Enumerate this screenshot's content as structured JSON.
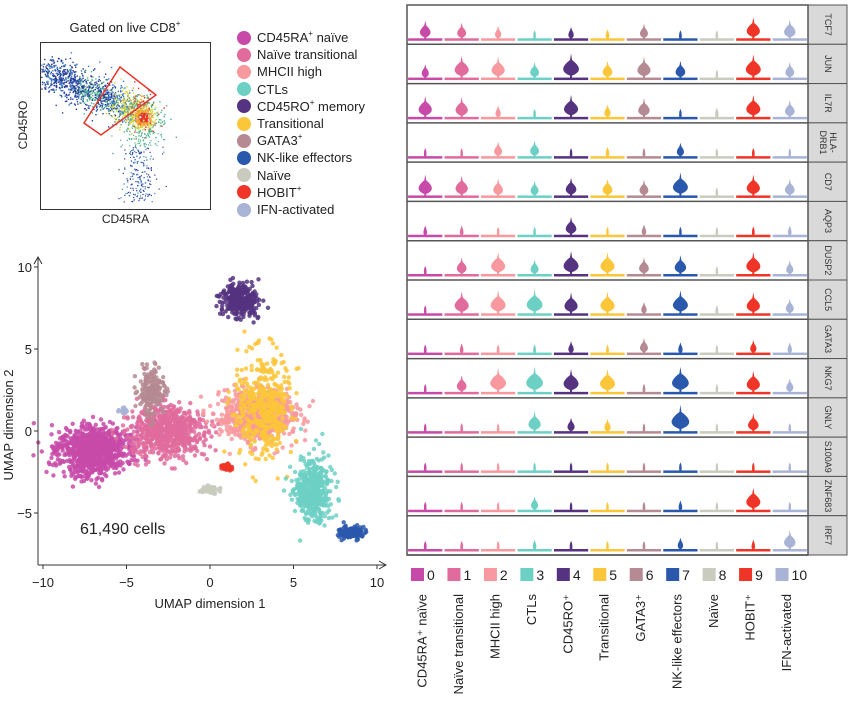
{
  "chart_data": [
    {
      "type": "scatter",
      "name": "flow-cytometry-gate",
      "title": "Gated on live CD8",
      "title_superscript": "+",
      "xlabel": "CD45RA",
      "ylabel": "CD45RO",
      "gate_shape": "rotated-rectangle",
      "gate_color": "#e8332a",
      "density_colors": [
        "#2a3d9a",
        "#3a7fc4",
        "#4fb38a",
        "#c9d93a",
        "#f5a623",
        "#e8332a"
      ]
    },
    {
      "type": "scatter",
      "name": "umap",
      "xlabel": "UMAP dimension 1",
      "ylabel": "UMAP dimension 2",
      "xlim": [
        -10,
        10
      ],
      "ylim": [
        -7,
        10
      ],
      "xticks": [
        -10,
        -5,
        0,
        5,
        10
      ],
      "yticks": [
        -5,
        0,
        5,
        10
      ],
      "xtick_labels": [
        "−10",
        "−5",
        "0",
        "5",
        "10"
      ],
      "ytick_labels": [
        "−5",
        "0",
        "5",
        "10"
      ],
      "annotation": "61,490 cells",
      "clusters": [
        {
          "id": 0,
          "center": [
            -7,
            -1.2
          ],
          "spread": [
            1.8,
            1.2
          ],
          "n": 900
        },
        {
          "id": 1,
          "center": [
            -2.5,
            0
          ],
          "spread": [
            1.8,
            1.3
          ],
          "n": 700
        },
        {
          "id": 2,
          "center": [
            2.8,
            1.0
          ],
          "spread": [
            2.0,
            1.3
          ],
          "n": 650
        },
        {
          "id": 3,
          "center": [
            6.2,
            -3.5
          ],
          "spread": [
            0.9,
            1.6
          ],
          "n": 450
        },
        {
          "id": 4,
          "center": [
            1.8,
            8.0
          ],
          "spread": [
            0.9,
            0.8
          ],
          "n": 320
        },
        {
          "id": 5,
          "center": [
            3.2,
            1.5
          ],
          "spread": [
            1.4,
            2.5
          ],
          "n": 420
        },
        {
          "id": 6,
          "center": [
            -3.5,
            2.5
          ],
          "spread": [
            0.6,
            1.1
          ],
          "n": 200
        },
        {
          "id": 7,
          "center": [
            8.5,
            -6.2
          ],
          "spread": [
            0.6,
            0.3
          ],
          "n": 140
        },
        {
          "id": 8,
          "center": [
            0.0,
            -3.6
          ],
          "spread": [
            0.4,
            0.2
          ],
          "n": 60
        },
        {
          "id": 9,
          "center": [
            1.0,
            -2.2
          ],
          "spread": [
            0.25,
            0.15
          ],
          "n": 60
        },
        {
          "id": 10,
          "center": [
            -5.2,
            1.2
          ],
          "spread": [
            0.2,
            0.15
          ],
          "n": 20
        }
      ]
    },
    {
      "type": "violin",
      "name": "gene-expression-violins",
      "genes": [
        "TCF7",
        "JUN",
        "IL7R",
        "HLA-DRB1",
        "CD7",
        "AQP3",
        "DUSP2",
        "CCL5",
        "GATA3",
        "NKG7",
        "GNLY",
        "S100A9",
        "ZNF683",
        "IRF7"
      ],
      "clusters": [
        "0",
        "1",
        "2",
        "3",
        "4",
        "5",
        "6",
        "7",
        "8",
        "9",
        "10"
      ],
      "expression_level_0_to_1": [
        [
          0.55,
          0.45,
          0.3,
          0.05,
          0.25,
          0.15,
          0.4,
          0.1,
          0.02,
          0.7,
          0.6
        ],
        [
          0.35,
          0.75,
          0.7,
          0.45,
          0.85,
          0.5,
          0.7,
          0.5,
          0.05,
          0.8,
          0.45
        ],
        [
          0.7,
          0.65,
          0.25,
          0.05,
          0.75,
          0.3,
          0.6,
          0.05,
          0.15,
          0.75,
          0.5
        ],
        [
          0.02,
          0.02,
          0.4,
          0.45,
          0.02,
          0.15,
          0.1,
          0.35,
          0.02,
          0.1,
          0.05
        ],
        [
          0.7,
          0.65,
          0.5,
          0.4,
          0.55,
          0.5,
          0.45,
          0.8,
          0.02,
          0.7,
          0.5
        ],
        [
          0.15,
          0.15,
          0.02,
          0.02,
          0.55,
          0.02,
          0.2,
          0.02,
          0.02,
          0.1,
          0.15
        ],
        [
          0.1,
          0.5,
          0.75,
          0.4,
          0.8,
          0.75,
          0.5,
          0.6,
          0.05,
          0.75,
          0.35
        ],
        [
          0.02,
          0.75,
          0.8,
          0.85,
          0.7,
          0.75,
          0.25,
          0.8,
          0.1,
          0.7,
          0.4
        ],
        [
          0.1,
          0.15,
          0.1,
          0.1,
          0.25,
          0.1,
          0.4,
          0.2,
          0.02,
          0.3,
          0.2
        ],
        [
          0.02,
          0.5,
          0.85,
          0.9,
          0.8,
          0.8,
          0.1,
          0.9,
          0.05,
          0.7,
          0.35
        ],
        [
          0.02,
          0.05,
          0.05,
          0.65,
          0.35,
          0.3,
          0.02,
          0.95,
          0.02,
          0.55,
          0.02
        ],
        [
          0.02,
          0.02,
          0.02,
          0.02,
          0.02,
          0.02,
          0.02,
          0.02,
          0.02,
          0.02,
          0.02
        ],
        [
          0.02,
          0.05,
          0.02,
          0.35,
          0.02,
          0.02,
          0.1,
          0.15,
          0.02,
          0.75,
          0.02
        ],
        [
          0.1,
          0.1,
          0.1,
          0.15,
          0.1,
          0.05,
          0.1,
          0.25,
          0.02,
          0.15,
          0.6
        ]
      ]
    }
  ],
  "clusters": [
    {
      "id": "0",
      "name": "CD45RA",
      "sup": "+",
      "suffix": " naïve",
      "axis_label": "CD45RA⁺ naïve",
      "color": "#c84aa8"
    },
    {
      "id": "1",
      "name": "Naïve transitional",
      "sup": "",
      "suffix": "",
      "axis_label": "Naïve transitional",
      "color": "#e06b9c"
    },
    {
      "id": "2",
      "name": "MHCII high",
      "sup": "",
      "suffix": "",
      "axis_label": "MHCII high",
      "color": "#f7999e"
    },
    {
      "id": "3",
      "name": "CTLs",
      "sup": "",
      "suffix": "",
      "axis_label": "CTLs",
      "color": "#6dd0c4"
    },
    {
      "id": "4",
      "name": "CD45RO",
      "sup": "+",
      "suffix": " memory",
      "axis_label": "CD45RO⁺",
      "color": "#553380"
    },
    {
      "id": "5",
      "name": "Transitional",
      "sup": "",
      "suffix": "",
      "axis_label": "Transitional",
      "color": "#fbc63a"
    },
    {
      "id": "6",
      "name": "GATA3",
      "sup": "+",
      "suffix": "",
      "axis_label": "GATA3⁺",
      "color": "#b58a92"
    },
    {
      "id": "7",
      "name": "NK-like effectors",
      "sup": "",
      "suffix": "",
      "axis_label": "NK-like effectors",
      "color": "#2a58ad"
    },
    {
      "id": "8",
      "name": "Naïve",
      "sup": "",
      "suffix": "",
      "axis_label": "Naïve",
      "color": "#c8cbbd"
    },
    {
      "id": "9",
      "name": "HOBIT",
      "sup": "+",
      "suffix": "",
      "axis_label": "HOBIT⁺",
      "color": "#ef3527"
    },
    {
      "id": "10",
      "name": "IFN-activated",
      "sup": "",
      "suffix": "",
      "axis_label": "IFN-activated",
      "color": "#a8b3d6"
    }
  ],
  "flow": {
    "title": "Gated on live CD8",
    "title_sup": "+",
    "xlabel": "CD45RA",
    "ylabel": "CD45RO"
  },
  "umap": {
    "xlabel": "UMAP dimension 1",
    "ylabel": "UMAP dimension 2",
    "annotation": "61,490 cells"
  }
}
